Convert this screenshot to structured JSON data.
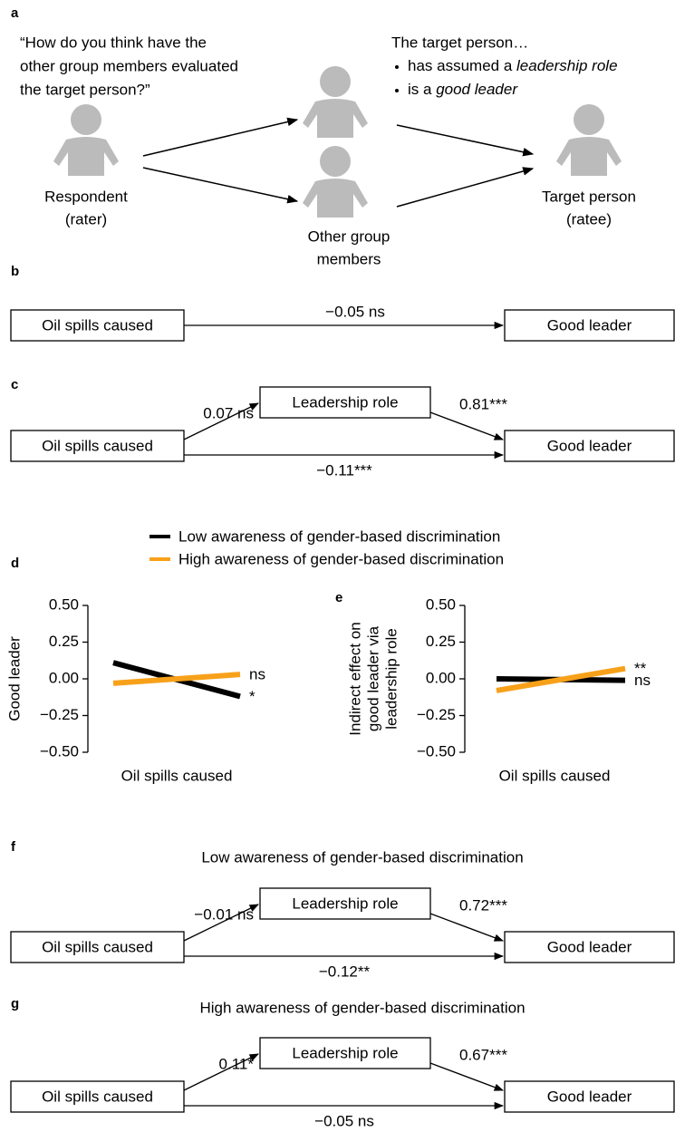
{
  "panel_a": {
    "label": "a",
    "question": [
      "“How do you think have the",
      "other group members evaluated",
      "the target person?”"
    ],
    "statement": "The target person…",
    "bullets": [
      {
        "text": "has assumed a ",
        "emphasis": "leadership role"
      },
      {
        "text": "is a ",
        "emphasis": "good leader"
      }
    ],
    "respondent": [
      "Respondent",
      "(rater)"
    ],
    "others": [
      "Other group",
      "members"
    ],
    "target": [
      "Target person",
      "(ratee)"
    ]
  },
  "panel_b": {
    "label": "b",
    "predictor": "Oil spills caused",
    "outcome": "Good leader",
    "direct": "−0.05 ns"
  },
  "panel_c": {
    "label": "c",
    "predictor": "Oil spills caused",
    "mediator": "Leadership role",
    "outcome": "Good leader",
    "a_path": "0.07 ns",
    "b_path": "0.81***",
    "direct": "−0.11***"
  },
  "chart_data": [
    {
      "type": "line",
      "label": "d",
      "ylabel": [
        "Good leader"
      ],
      "xlabel": "Oil spills caused",
      "categories": [
        null,
        null
      ],
      "series": [
        {
          "name": "Low awareness of gender-based discrimination",
          "color": "#000000",
          "values": [
            0.11,
            -0.12
          ],
          "end_label": "*"
        },
        {
          "name": "High awareness of gender-based discrimination",
          "color": "#f7a11a",
          "values": [
            -0.03,
            0.03
          ],
          "end_label": "ns"
        }
      ],
      "ylim": [
        -0.5,
        0.5
      ],
      "yticks": [
        {
          "value": 0.5,
          "label": "0.50"
        },
        {
          "value": 0.25,
          "label": "0.25"
        },
        {
          "value": 0,
          "label": "0.00"
        },
        {
          "value": -0.25,
          "label": "−0.25"
        },
        {
          "value": -0.5,
          "label": "−0.50"
        }
      ]
    },
    {
      "type": "line",
      "label": "e",
      "ylabel": [
        "Indirect effect on",
        "good leader via",
        "leadership role"
      ],
      "xlabel": "Oil spills caused",
      "categories": [
        null,
        null
      ],
      "series": [
        {
          "color": "#000000",
          "values": [
            0,
            -0.01
          ],
          "end_label": "ns"
        },
        {
          "color": "#f7a11a",
          "values": [
            -0.08,
            0.07
          ],
          "end_label": "**"
        }
      ],
      "ylim": [
        -0.5,
        0.5
      ],
      "yticks": [
        {
          "value": 0.5,
          "label": "0.50"
        },
        {
          "value": 0.25,
          "label": "0.25"
        },
        {
          "value": 0,
          "label": "0.00"
        },
        {
          "value": -0.25,
          "label": "−0.25"
        },
        {
          "value": -0.5,
          "label": "−0.50"
        }
      ]
    }
  ],
  "panel_f": {
    "label": "f",
    "title": "Low awareness of gender-based discrimination",
    "predictor": "Oil spills caused",
    "mediator": "Leadership role",
    "outcome": "Good leader",
    "a_path": "−0.01 ns",
    "b_path": "0.72***",
    "direct": "−0.12**"
  },
  "panel_g": {
    "label": "g",
    "title": "High awareness of gender-based discrimination",
    "predictor": "Oil spills caused",
    "mediator": "Leadership role",
    "outcome": "Good leader",
    "a_path": "0.11*",
    "b_path": "0.67***",
    "direct": "−0.05 ns"
  }
}
